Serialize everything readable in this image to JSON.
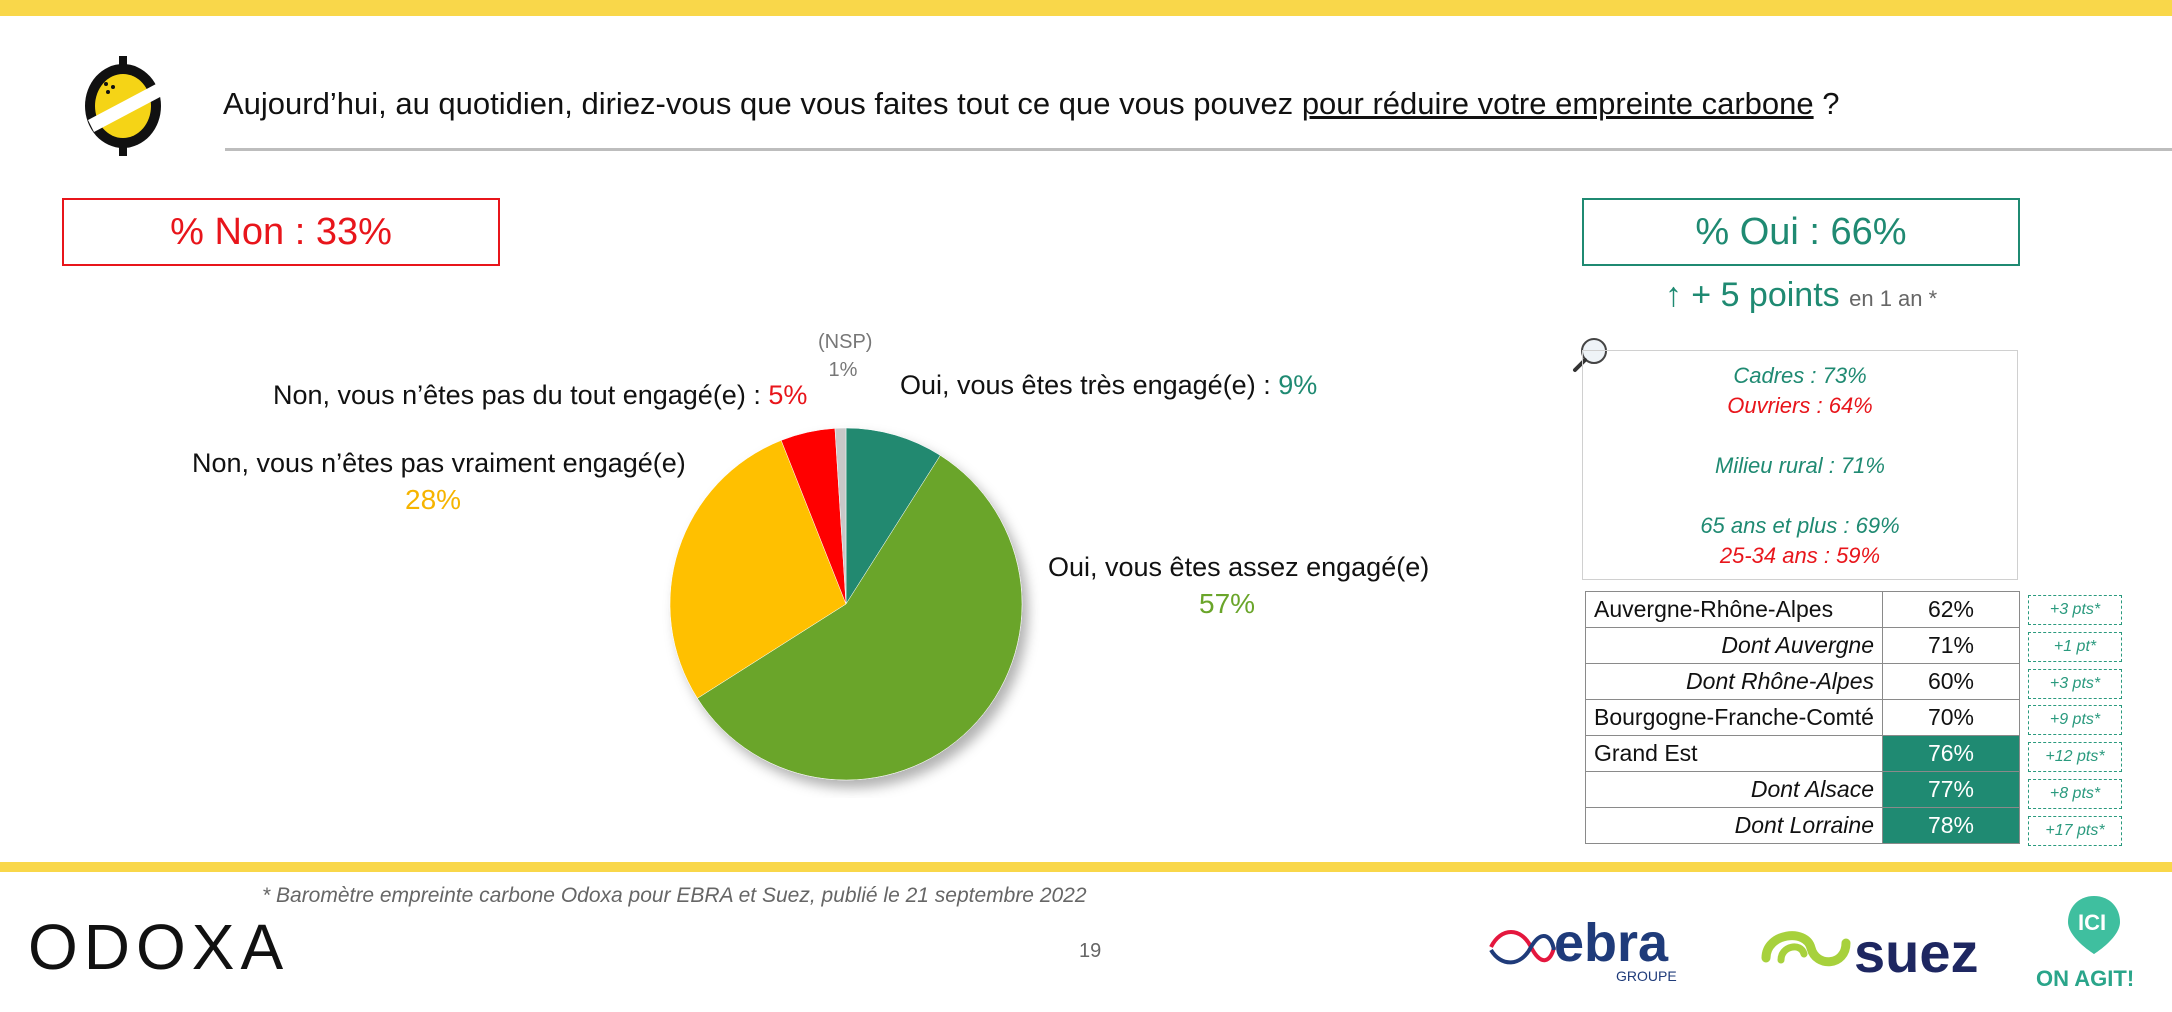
{
  "header": {
    "question_prefix": "Aujourd’hui, au quotidien, diriez-vous que vous faites tout ce que vous pouvez",
    "question_underlined": "pour réduire votre empreinte carbone",
    "question_suffix": " ?"
  },
  "summary": {
    "non_total": "% Non : 33%",
    "oui_total": "% Oui : 66%",
    "trend_arrow": "↑",
    "trend_text": "+ 5 points",
    "trend_suffix": "en 1 an *"
  },
  "profiles": {
    "cadres": "Cadres : 73%",
    "ouvriers": "Ouvriers : 64%",
    "milieu_rural": "Milieu rural : 71%",
    "age_65": "65 ans et plus : 69%",
    "age_25_34": "25-34 ans : 59%"
  },
  "chart_data": {
    "type": "pie",
    "title": "",
    "slices": [
      {
        "label": "Oui, vous êtes très engagé(e) :",
        "value": 9,
        "value_label": "9%",
        "color": "#218970"
      },
      {
        "label": "Oui, vous êtes assez engagé(e)",
        "value": 57,
        "value_label": "57%",
        "color": "#6aa52a"
      },
      {
        "label": "Non, vous n’êtes pas vraiment engagé(e)",
        "value": 28,
        "value_label": "28%",
        "color": "#ffc000"
      },
      {
        "label": "Non, vous n’êtes pas du tout engagé(e) :",
        "value": 5,
        "value_label": "5%",
        "color": "#ff0000"
      },
      {
        "label": "(NSP)",
        "value": 1,
        "value_label": "1%",
        "color": "#c8c8c8"
      }
    ]
  },
  "regions": [
    {
      "name": "Auvergne-Rhône-Alpes",
      "value": "62%",
      "delta": "+3 pts*",
      "sub": false,
      "highlight": false
    },
    {
      "name": "Dont Auvergne",
      "value": "71%",
      "delta": "+1 pt*",
      "sub": true,
      "highlight": false
    },
    {
      "name": "Dont Rhône-Alpes",
      "value": "60%",
      "delta": "+3 pts*",
      "sub": true,
      "highlight": false
    },
    {
      "name": "Bourgogne-Franche-Comté",
      "value": "70%",
      "delta": "+9 pts*",
      "sub": false,
      "highlight": false
    },
    {
      "name": "Grand Est",
      "value": "76%",
      "delta": "+12 pts*",
      "sub": false,
      "highlight": true
    },
    {
      "name": "Dont Alsace",
      "value": "77%",
      "delta": "+8 pts*",
      "sub": true,
      "highlight": true
    },
    {
      "name": "Dont Lorraine",
      "value": "78%",
      "delta": "+17 pts*",
      "sub": true,
      "highlight": true
    }
  ],
  "footer": {
    "footnote": "* Baromètre empreinte carbone Odoxa pour EBRA et Suez, publié le 21 septembre 2022",
    "page_number": "19",
    "brand_odoxa": "ODOXA",
    "logo_ebra": "ebra",
    "logo_ebra_sub": "GROUPE",
    "logo_suez": "suez",
    "logo_ici": "ICI",
    "logo_ici_sub": "ON AGIT!"
  },
  "colors": {
    "yellow_band": "#f9d74a",
    "oui_green": "#1f8a72",
    "non_red": "#e8151b"
  }
}
